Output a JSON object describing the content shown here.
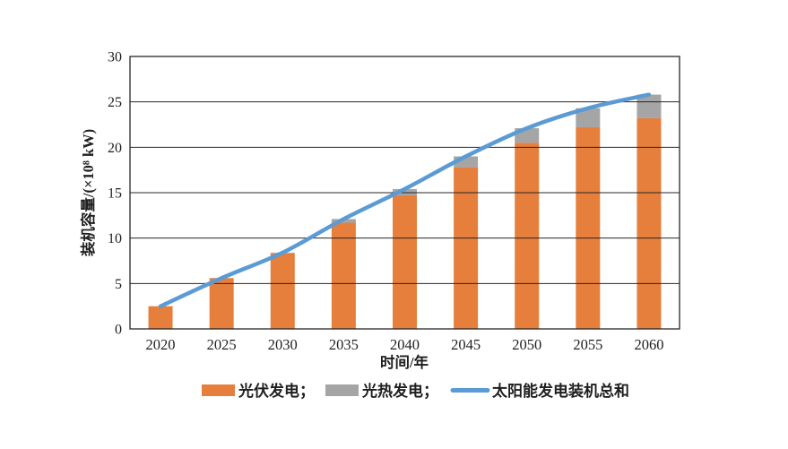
{
  "chart_data": {
    "type": "bar",
    "subtype": "stacked-bars-with-line-overlay",
    "title": "",
    "xlabel": "时间/年",
    "ylabel": "装机容量/(×10⁸ kW)",
    "categories": [
      "2020",
      "2025",
      "2030",
      "2035",
      "2040",
      "2045",
      "2050",
      "2055",
      "2060"
    ],
    "stacked": true,
    "series": [
      {
        "name": "光伏发电",
        "chart": "bar",
        "color": "#E67E3C",
        "values": [
          2.5,
          5.6,
          8.3,
          11.7,
          14.7,
          17.8,
          20.5,
          22.2,
          23.2
        ]
      },
      {
        "name": "光热发电",
        "chart": "bar",
        "color": "#A5A5A5",
        "values": [
          0,
          0,
          0.1,
          0.4,
          0.7,
          1.2,
          1.6,
          2.1,
          2.6
        ]
      },
      {
        "name": "太阳能发电装机总和",
        "chart": "line",
        "color": "#5B9BD5",
        "values": [
          2.5,
          5.6,
          8.4,
          12.1,
          15.4,
          19.0,
          22.1,
          24.3,
          25.8
        ]
      }
    ],
    "ylim": [
      0,
      30
    ],
    "ytick_step": 5,
    "yticks": [
      0,
      5,
      10,
      15,
      20,
      25,
      30
    ],
    "grid": "horizontal",
    "legend_position": "bottom",
    "legend": [
      {
        "label": "光伏发电；",
        "swatch": "rect"
      },
      {
        "label": "光热发电；",
        "swatch": "rect"
      },
      {
        "label": "太阳能发电装机总和",
        "swatch": "line"
      }
    ],
    "axis_color": "#262626",
    "text_color": "#1f1f1f",
    "background": "#ffffff"
  }
}
